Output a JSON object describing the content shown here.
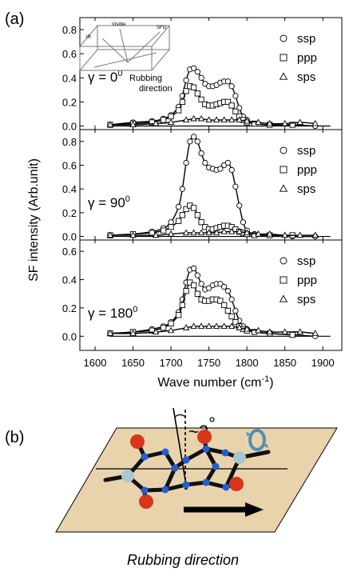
{
  "panel_a_label": "(a)",
  "panel_b_label": "(b)",
  "y_axis_label": "SF intensity (Arb.unit)",
  "x_axis_label": "Wave number (cm",
  "x_axis_label_sup": "-1",
  "x_axis_label_end": ")",
  "inset": {
    "caption_line1": "Rubbing",
    "caption_line2": "direction",
    "label_left": "IR",
    "label_top_left": "Visible",
    "label_top_right": "SFG"
  },
  "angle_label": "~2",
  "angle_degree": "°",
  "rubbing_direction_label": "Rubbing direction",
  "colors": {
    "axes": "#000000",
    "plane": "#e8d3ad",
    "oxygen": "#d8361c",
    "nitrogen": "#1f5fd6",
    "end_atom": "#a9c7cf"
  },
  "chart_data": [
    {
      "type": "line",
      "panel": "gamma-0",
      "gamma_label": "γ = 0",
      "gamma_sup": "0",
      "xlim": [
        1580,
        1925
      ],
      "ylim": [
        -0.03,
        0.9
      ],
      "yticks": [
        "0.0",
        "0.2",
        "0.4",
        "0.6",
        "0.8"
      ],
      "ytick_values": [
        0.0,
        0.2,
        0.4,
        0.6,
        0.8
      ],
      "legend": [
        "ssp",
        "ppp",
        "sps"
      ],
      "series": [
        {
          "name": "ssp",
          "marker": "circle",
          "x": [
            1620,
            1650,
            1675,
            1690,
            1700,
            1710,
            1715,
            1720,
            1725,
            1730,
            1735,
            1740,
            1745,
            1750,
            1755,
            1760,
            1765,
            1770,
            1775,
            1780,
            1785,
            1790,
            1795,
            1800,
            1810,
            1830,
            1860,
            1890
          ],
          "y": [
            0.01,
            0.03,
            0.04,
            0.06,
            0.09,
            0.16,
            0.25,
            0.38,
            0.47,
            0.48,
            0.45,
            0.4,
            0.35,
            0.33,
            0.33,
            0.34,
            0.36,
            0.37,
            0.37,
            0.33,
            0.25,
            0.15,
            0.08,
            0.05,
            0.02,
            0.01,
            0.01,
            0.0
          ]
        },
        {
          "name": "ppp",
          "marker": "square",
          "x": [
            1620,
            1650,
            1675,
            1690,
            1700,
            1710,
            1715,
            1720,
            1725,
            1730,
            1735,
            1740,
            1745,
            1750,
            1755,
            1760,
            1765,
            1770,
            1775,
            1780,
            1785,
            1790,
            1795,
            1800,
            1810,
            1830,
            1860
          ],
          "y": [
            0.01,
            0.02,
            0.03,
            0.05,
            0.08,
            0.13,
            0.2,
            0.29,
            0.33,
            0.32,
            0.27,
            0.22,
            0.18,
            0.17,
            0.17,
            0.18,
            0.19,
            0.2,
            0.2,
            0.17,
            0.12,
            0.08,
            0.05,
            0.03,
            0.02,
            0.01,
            0.01
          ]
        },
        {
          "name": "sps",
          "marker": "triangle",
          "x": [
            1620,
            1650,
            1680,
            1700,
            1720,
            1730,
            1740,
            1750,
            1760,
            1770,
            1780,
            1790,
            1800,
            1815,
            1830,
            1850,
            1870,
            1890
          ],
          "y": [
            0.01,
            0.01,
            0.02,
            0.03,
            0.05,
            0.06,
            0.06,
            0.05,
            0.05,
            0.05,
            0.05,
            0.05,
            0.04,
            0.03,
            0.02,
            0.02,
            0.03,
            0.02
          ]
        }
      ]
    },
    {
      "type": "line",
      "panel": "gamma-90",
      "gamma_label": "γ = 90",
      "gamma_sup": "0",
      "xlim": [
        1580,
        1925
      ],
      "ylim": [
        -0.03,
        0.9
      ],
      "yticks": [
        "0.0",
        "0.2",
        "0.4",
        "0.6",
        "0.8"
      ],
      "ytick_values": [
        0.0,
        0.2,
        0.4,
        0.6,
        0.8
      ],
      "legend": [
        "ssp",
        "ppp",
        "sps"
      ],
      "series": [
        {
          "name": "ssp",
          "marker": "circle",
          "x": [
            1620,
            1650,
            1675,
            1690,
            1700,
            1710,
            1715,
            1720,
            1725,
            1730,
            1735,
            1740,
            1745,
            1750,
            1755,
            1760,
            1765,
            1770,
            1775,
            1780,
            1785,
            1790,
            1795,
            1800,
            1810,
            1830,
            1860,
            1890
          ],
          "y": [
            0.01,
            0.02,
            0.04,
            0.07,
            0.12,
            0.25,
            0.4,
            0.62,
            0.8,
            0.84,
            0.8,
            0.7,
            0.62,
            0.58,
            0.57,
            0.56,
            0.57,
            0.6,
            0.62,
            0.56,
            0.42,
            0.26,
            0.12,
            0.05,
            0.02,
            0.01,
            0.0,
            0.0
          ]
        },
        {
          "name": "ppp",
          "marker": "square",
          "x": [
            1620,
            1650,
            1675,
            1690,
            1700,
            1710,
            1715,
            1720,
            1725,
            1730,
            1735,
            1740,
            1745,
            1750,
            1755,
            1760,
            1765,
            1770,
            1775,
            1780,
            1785,
            1790,
            1795,
            1800,
            1810,
            1830,
            1860
          ],
          "y": [
            0.01,
            0.02,
            0.03,
            0.05,
            0.08,
            0.13,
            0.18,
            0.23,
            0.26,
            0.24,
            0.18,
            0.12,
            0.08,
            0.06,
            0.06,
            0.07,
            0.08,
            0.09,
            0.09,
            0.08,
            0.06,
            0.04,
            0.03,
            0.02,
            0.01,
            0.01,
            0.01
          ]
        },
        {
          "name": "sps",
          "marker": "triangle",
          "x": [
            1620,
            1650,
            1680,
            1700,
            1720,
            1730,
            1740,
            1750,
            1760,
            1770,
            1780,
            1790,
            1800,
            1815,
            1830,
            1850,
            1870,
            1890
          ],
          "y": [
            0.01,
            0.01,
            0.01,
            0.02,
            0.03,
            0.03,
            0.03,
            0.03,
            0.03,
            0.04,
            0.04,
            0.04,
            0.03,
            0.02,
            0.02,
            0.01,
            0.01,
            0.01
          ]
        }
      ]
    },
    {
      "type": "line",
      "panel": "gamma-180",
      "gamma_label": "γ = 180",
      "gamma_sup": "0",
      "xlim": [
        1580,
        1925
      ],
      "ylim": [
        -0.1,
        0.68
      ],
      "yticks": [
        "0.0",
        "0.2",
        "0.4",
        "0.6"
      ],
      "ytick_values": [
        0.0,
        0.2,
        0.4,
        0.6
      ],
      "xticks": [
        "1600",
        "1650",
        "1700",
        "1750",
        "1800",
        "1850",
        "1900"
      ],
      "xtick_values": [
        1600,
        1650,
        1700,
        1750,
        1800,
        1850,
        1900
      ],
      "legend": [
        "ssp",
        "ppp",
        "sps"
      ],
      "series": [
        {
          "name": "ssp",
          "marker": "circle",
          "x": [
            1620,
            1650,
            1675,
            1690,
            1700,
            1710,
            1715,
            1720,
            1725,
            1730,
            1735,
            1740,
            1745,
            1750,
            1755,
            1760,
            1765,
            1770,
            1775,
            1780,
            1785,
            1790,
            1795,
            1800,
            1810,
            1830,
            1860,
            1890
          ],
          "y": [
            0.02,
            0.03,
            0.05,
            0.07,
            0.1,
            0.17,
            0.26,
            0.38,
            0.47,
            0.48,
            0.43,
            0.37,
            0.33,
            0.34,
            0.36,
            0.37,
            0.37,
            0.35,
            0.32,
            0.26,
            0.18,
            0.11,
            0.07,
            0.05,
            0.03,
            0.02,
            0.01,
            0.0
          ]
        },
        {
          "name": "ppp",
          "marker": "square",
          "x": [
            1620,
            1650,
            1675,
            1690,
            1700,
            1710,
            1715,
            1720,
            1725,
            1730,
            1735,
            1740,
            1745,
            1750,
            1755,
            1760,
            1765,
            1770,
            1775,
            1780,
            1785,
            1790,
            1795,
            1800,
            1810,
            1830,
            1860
          ],
          "y": [
            0.02,
            0.03,
            0.04,
            0.06,
            0.09,
            0.15,
            0.22,
            0.32,
            0.38,
            0.36,
            0.3,
            0.26,
            0.25,
            0.25,
            0.26,
            0.26,
            0.25,
            0.22,
            0.18,
            0.14,
            0.1,
            0.07,
            0.05,
            0.04,
            0.03,
            0.02,
            0.01
          ]
        },
        {
          "name": "sps",
          "marker": "triangle",
          "x": [
            1620,
            1650,
            1680,
            1700,
            1720,
            1730,
            1740,
            1750,
            1760,
            1770,
            1780,
            1790,
            1800,
            1815,
            1830,
            1850,
            1870,
            1890
          ],
          "y": [
            0.02,
            0.02,
            0.03,
            0.04,
            0.06,
            0.07,
            0.07,
            0.07,
            0.07,
            0.07,
            0.07,
            0.06,
            0.05,
            0.04,
            0.03,
            0.03,
            0.03,
            0.02
          ]
        }
      ]
    }
  ]
}
